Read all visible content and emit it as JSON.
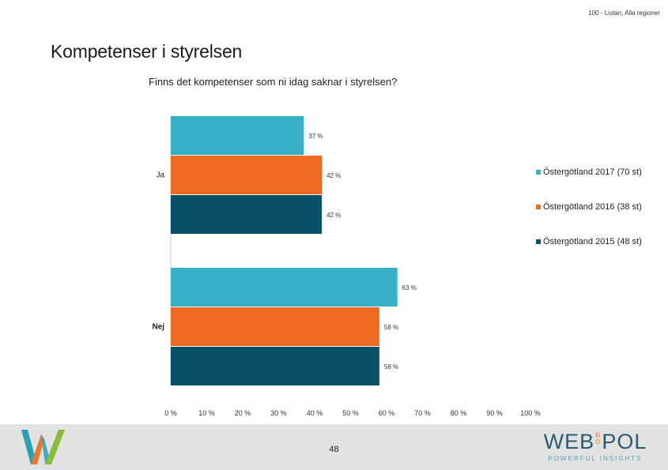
{
  "header": {
    "source": "100 - Listan, Alla regioner"
  },
  "slide": {
    "title": "Kompetenser i styrelsen"
  },
  "chart_data": {
    "type": "bar",
    "orientation": "horizontal",
    "title": "Finns det kompetenser som ni idag saknar i styrelsen?",
    "categories": [
      "Ja",
      "Nej"
    ],
    "series": [
      {
        "name": "Östergötland 2017 (70 st)",
        "color": "#36b0c4",
        "values": [
          37,
          63
        ],
        "labels": [
          "37 %",
          "63 %"
        ]
      },
      {
        "name": "Östergötland 2016 (38 st)",
        "color": "#f06b22",
        "values": [
          42,
          58
        ],
        "labels": [
          "42 %",
          "58 %"
        ]
      },
      {
        "name": "Östergötland 2015 (48 st)",
        "color": "#0a5066",
        "values": [
          42,
          58
        ],
        "labels": [
          "42 %",
          "58 %"
        ]
      }
    ],
    "xlim": [
      0,
      100
    ],
    "xticks": [
      "0 %",
      "10 %",
      "20 %",
      "30 %",
      "40 %",
      "50 %",
      "60 %",
      "70 %",
      "80 %",
      "90 %",
      "100 %"
    ],
    "grid": false,
    "legend_position": "right"
  },
  "footer": {
    "page_number": "48",
    "brand_left": "WEB",
    "brand_ro": "RO",
    "brand_right": "POL",
    "brand_tagline": "POWERFUL INSIGHTS",
    "logo_colors": [
      "#2b9fb4",
      "#e87a2e",
      "#8cbc3c"
    ]
  }
}
